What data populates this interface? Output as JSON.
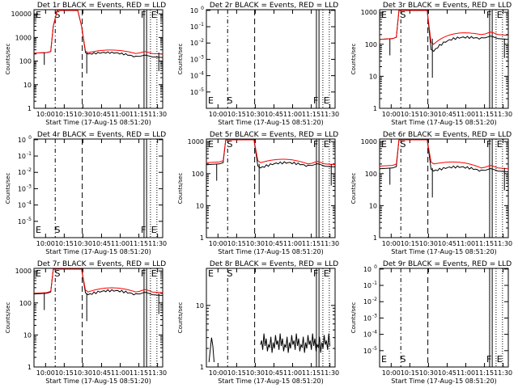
{
  "common": {
    "xlabel": "Start Time (17-Aug-15 08:51:20)",
    "ylabel": "Counts/sec",
    "x_ticks": [
      "10:00",
      "10:15",
      "10:30",
      "10:45",
      "11:00",
      "11:15",
      "11:30"
    ],
    "colors": {
      "events": "#000000",
      "lld": "#ff0000"
    }
  },
  "chart_data": [
    {
      "type": "line",
      "title": "Det 1r BLACK = Events, RED = LLD",
      "scale": "log",
      "y_ticks": [
        "1",
        "10",
        "100",
        "1000",
        "10000"
      ],
      "yrange": [
        1,
        15000
      ],
      "markers": [
        "E",
        "S",
        "F",
        "E"
      ],
      "profile": "a",
      "events": [
        230,
        200,
        150
      ],
      "lld": [
        230,
        230,
        210
      ],
      "show_lld": true
    },
    {
      "type": "line",
      "title": "Det 2r BLACK = Events, RED = LLD",
      "scale": "log",
      "y_ticks": [
        "10^0",
        "10^-1",
        "10^-2",
        "10^-3",
        "10^-4",
        "10^-5"
      ],
      "yrange": [
        1e-06,
        1.1
      ],
      "y_exp": [
        0,
        -1,
        -2,
        -3,
        -4,
        -5
      ],
      "markers": [
        "E",
        "S",
        "F",
        "E"
      ],
      "profile": "none",
      "show_lld": false
    },
    {
      "type": "line",
      "title": "Det 3r BLACK = Events, RED = LLD",
      "scale": "log",
      "y_ticks": [
        "1",
        "10",
        "100",
        "1000"
      ],
      "yrange": [
        1,
        1200
      ],
      "markers": [
        "E",
        "S",
        "F",
        "E"
      ],
      "profile": "a",
      "events": [
        150,
        60,
        150
      ],
      "lld": [
        150,
        100,
        200
      ],
      "show_lld": true
    },
    {
      "type": "line",
      "title": "Det 4r BLACK = Events, RED = LLD",
      "scale": "log",
      "y_ticks": [
        "10^0",
        "10^-1",
        "10^-2",
        "10^-3",
        "10^-4",
        "10^-5"
      ],
      "yrange": [
        1e-06,
        1.1
      ],
      "y_exp": [
        0,
        -1,
        -2,
        -3,
        -4,
        -5
      ],
      "markers": [
        "E",
        "S",
        "F",
        "E"
      ],
      "profile": "none",
      "show_lld": false
    },
    {
      "type": "line",
      "title": "Det 5r BLACK = Events, RED = LLD",
      "scale": "log",
      "y_ticks": [
        "1",
        "10",
        "100",
        "1000"
      ],
      "yrange": [
        1,
        1200
      ],
      "markers": [
        "E",
        "S",
        "F",
        "E"
      ],
      "profile": "a",
      "events": [
        200,
        150,
        170
      ],
      "lld": [
        230,
        220,
        200
      ],
      "show_lld": true
    },
    {
      "type": "line",
      "title": "Det 6r BLACK = Events, RED = LLD",
      "scale": "log",
      "y_ticks": [
        "1",
        "10",
        "100",
        "1000"
      ],
      "yrange": [
        1,
        1200
      ],
      "markers": [
        "E",
        "S",
        "F",
        "E"
      ],
      "profile": "a",
      "events": [
        150,
        120,
        120
      ],
      "lld": [
        180,
        200,
        150
      ],
      "show_lld": true
    },
    {
      "type": "line",
      "title": "Det 7r BLACK = Events, RED = LLD",
      "scale": "log",
      "y_ticks": [
        "1",
        "10",
        "100",
        "1000"
      ],
      "yrange": [
        1,
        1200
      ],
      "markers": [
        "E",
        "S",
        "F",
        "E"
      ],
      "profile": "a",
      "events": [
        200,
        180,
        180
      ],
      "lld": [
        210,
        220,
        220
      ],
      "show_lld": true
    },
    {
      "type": "line",
      "title": "Det 8r BLACK = Events, RED = LLD",
      "scale": "log",
      "y_ticks": [
        "1",
        "10"
      ],
      "yrange": [
        1,
        40
      ],
      "markers": [
        "E",
        "S",
        "F",
        "E"
      ],
      "profile": "noise",
      "show_lld": false
    },
    {
      "type": "line",
      "title": "Det 9r BLACK = Events, RED = LLD",
      "scale": "log",
      "y_ticks": [
        "10^0",
        "10^-1",
        "10^-2",
        "10^-3",
        "10^-4",
        "10^-5"
      ],
      "yrange": [
        1e-06,
        1.1
      ],
      "y_exp": [
        0,
        -1,
        -2,
        -3,
        -4,
        -5
      ],
      "markers": [
        "E",
        "S",
        "F",
        "E"
      ],
      "profile": "none",
      "show_lld": false
    }
  ]
}
